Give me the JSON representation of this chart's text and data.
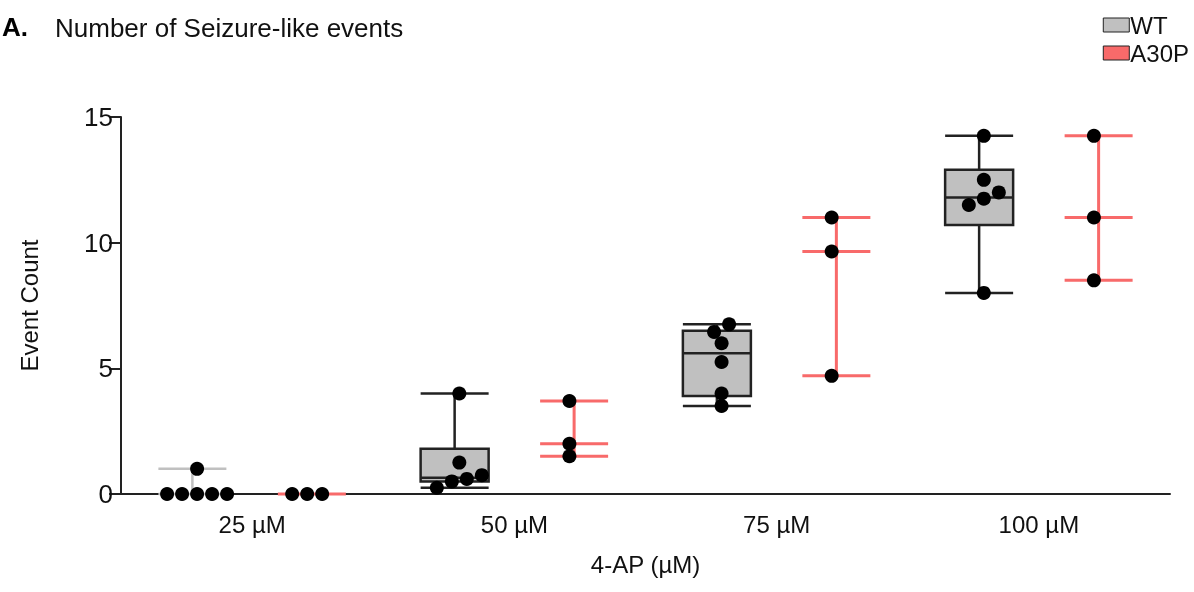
{
  "chart_data": {
    "type": "box",
    "title": "Number of Seizure-like events",
    "annotations": [
      "A."
    ],
    "xlabel": "4-AP (µM)",
    "ylabel": "Event Count",
    "categories": [
      "25 µM",
      "50 µM",
      "75 µM",
      "100 µM"
    ],
    "ylim": [
      0,
      15
    ],
    "yticks": [
      0,
      5,
      10,
      15
    ],
    "grid": false,
    "legend": "top right",
    "series": [
      {
        "name": "WT",
        "color": "#c0c0c0",
        "boxes": [
          {
            "low": 0,
            "q1": 0,
            "median": 0,
            "q3": 0,
            "high": 1
          },
          {
            "low": 0.25,
            "q1": 0.5,
            "median": 0.65,
            "q3": 1.8,
            "high": 4
          },
          {
            "low": 3.5,
            "q1": 3.9,
            "median": 5.6,
            "q3": 6.5,
            "high": 6.75
          },
          {
            "low": 8,
            "q1": 10.7,
            "median": 11.8,
            "q3": 12.9,
            "high": 14.25
          }
        ]
      },
      {
        "name": "A30P",
        "color": "#f86a6a",
        "boxes": [
          {
            "low": 0,
            "q1": 0,
            "median": 0,
            "q3": 0,
            "high": 0
          },
          {
            "low": 1.5,
            "q1": 2,
            "median": 2,
            "q3": 2,
            "high": 3.7
          },
          {
            "low": 4.7,
            "q1": 9.65,
            "median": 9.65,
            "q3": 9.65,
            "high": 11
          },
          {
            "low": 8.5,
            "q1": 11,
            "median": 11,
            "q3": 11,
            "high": 14.25
          }
        ]
      },
      {
        "type": "scatter",
        "color": "#000000",
        "marker": "circle",
        "x": [
          "25 µM",
          "25 µM",
          "25 µM",
          "25 µM",
          "25 µM",
          "25 µM",
          "50 µM",
          "50 µM",
          "50 µM",
          "50 µM",
          "50 µM",
          "50 µM",
          "75 µM",
          "75 µM",
          "75 µM",
          "75 µM",
          "75 µM",
          "75 µM",
          "100 µM",
          "100 µM",
          "100 µM",
          "100 µM",
          "100 µM",
          "100 µM"
        ],
        "values": [
          0,
          0,
          0,
          0,
          0,
          1,
          4,
          1.25,
          0.75,
          0.6,
          0.5,
          0.25,
          6.75,
          6.45,
          6,
          5.25,
          4,
          3.5,
          14.25,
          12.5,
          12,
          11.75,
          11.5,
          8
        ]
      },
      {
        "type": "scatter",
        "color": "#000000",
        "marker": "circle",
        "x": [
          "25 µM",
          "25 µM",
          "25 µM",
          "50 µM",
          "50 µM",
          "50 µM",
          "75 µM",
          "75 µM",
          "75 µM",
          "100 µM",
          "100 µM",
          "100 µM"
        ],
        "values": [
          0,
          0,
          0,
          3.7,
          2,
          1.5,
          11,
          9.65,
          4.7,
          14.25,
          11,
          8.5
        ]
      }
    ]
  }
}
